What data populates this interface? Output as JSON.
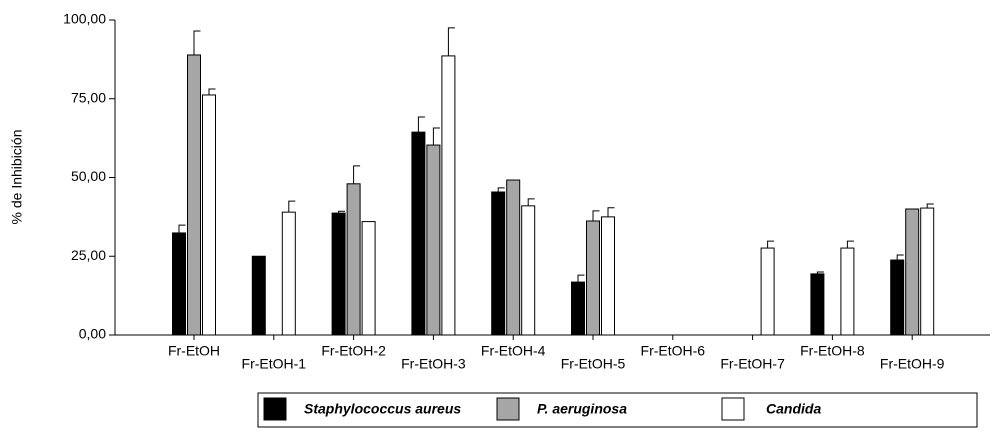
{
  "chart_data": {
    "type": "bar",
    "y_label": "% de Inhibición",
    "categories": [
      "Fr-EtOH",
      "Fr-EtOH-1",
      "Fr-EtOH-2",
      "Fr-EtOH-3",
      "Fr-EtOH-4",
      "Fr-EtOH-5",
      "Fr-EtOH-6",
      "Fr-EtOH-7",
      "Fr-EtOH-8",
      "Fr-EtOH-9"
    ],
    "series": [
      {
        "name": "Staphylococcus aureus",
        "color": "#000000",
        "values": [
          32.4,
          25,
          38.7,
          64.4,
          45.4,
          16.8,
          0,
          0,
          19.4,
          23.8
        ],
        "errors": [
          2.5,
          0,
          0.6,
          4.8,
          1.3,
          2.2,
          0,
          0,
          0.6,
          1.6
        ]
      },
      {
        "name": "P. aeruginosa",
        "color": "#a6a6a6",
        "values": [
          88.9,
          0,
          48,
          60.3,
          49.2,
          36.2,
          0,
          0,
          0,
          40
        ],
        "errors": [
          7.6,
          0,
          5.7,
          5.4,
          0,
          3.2,
          0,
          0,
          0,
          0
        ]
      },
      {
        "name": "Candida",
        "color": "#ffffff",
        "values": [
          76.2,
          39,
          36,
          88.6,
          41,
          37.5,
          0,
          27.6,
          27.6,
          40.3
        ],
        "errors": [
          1.9,
          3.5,
          0,
          8.9,
          2.2,
          2.9,
          0,
          2.2,
          2.2,
          1.3
        ]
      }
    ],
    "ylim": [
      0,
      100
    ],
    "yticks": [
      {
        "value": 0,
        "label": "0,00"
      },
      {
        "value": 25,
        "label": "25,00"
      },
      {
        "value": 50,
        "label": "50,00"
      },
      {
        "value": 75,
        "label": "75,00"
      },
      {
        "value": 100,
        "label": "100,00"
      }
    ]
  }
}
